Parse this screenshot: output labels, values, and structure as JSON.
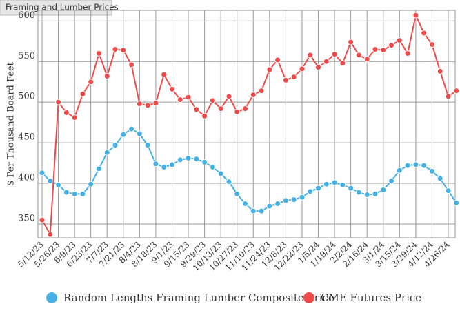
{
  "chart_data": {
    "type": "line",
    "title": "Framing and Lumber Prices",
    "y_label": "$ Per Thousand Board Feet",
    "categories": [
      "5/12/23",
      null,
      "5/26/23",
      null,
      "6/9/23",
      null,
      "6/23/23",
      null,
      "7/7/23",
      null,
      "7/21/23",
      null,
      "8/4/23",
      null,
      "8/18/23",
      null,
      "9/1/23",
      null,
      "9/15/23",
      null,
      "9/29/23",
      null,
      "10/13/23",
      null,
      "10/27/23",
      null,
      "11/10/23",
      null,
      "11/24/23",
      null,
      "12/8/23",
      null,
      "12/22/23",
      null,
      "1/5/24",
      null,
      "1/19/24",
      null,
      "2/2/24",
      null,
      "2/16/24",
      null,
      "3/1/24",
      null,
      "3/15/24",
      null,
      "3/29/24",
      null,
      "4/12/24",
      null,
      "4/26/24",
      null
    ],
    "series": [
      {
        "name": "Random Lengths Framing Lumber Composite Price",
        "color": "#45b0e5",
        "values": [
          413,
          403,
          398,
          389,
          387,
          387,
          399,
          418,
          438,
          447,
          460,
          467,
          461,
          447,
          424,
          420,
          423,
          429,
          431,
          430,
          426,
          420,
          412,
          402,
          387,
          375,
          366,
          366,
          372,
          375,
          379,
          380,
          383,
          390,
          394,
          399,
          401,
          398,
          394,
          389,
          386,
          387,
          392,
          403,
          416,
          422,
          423,
          422,
          415,
          406,
          391,
          376
        ]
      },
      {
        "name": "CME Futures Price",
        "color": "#ee4a4a",
        "values": [
          355,
          337,
          500,
          487,
          481,
          510,
          525,
          560,
          532,
          565,
          564,
          546,
          498,
          496,
          499,
          534,
          516,
          503,
          506,
          491,
          483,
          502,
          492,
          507,
          488,
          492,
          509,
          514,
          540,
          552,
          527,
          531,
          541,
          558,
          543,
          550,
          559,
          548,
          574,
          558,
          553,
          565,
          564,
          570,
          576,
          560,
          607,
          585,
          571,
          538,
          507,
          514
        ]
      }
    ],
    "ylim": [
      333,
      613
    ],
    "yticks": [
      350,
      400,
      450,
      500,
      550,
      600
    ],
    "grid": true
  }
}
